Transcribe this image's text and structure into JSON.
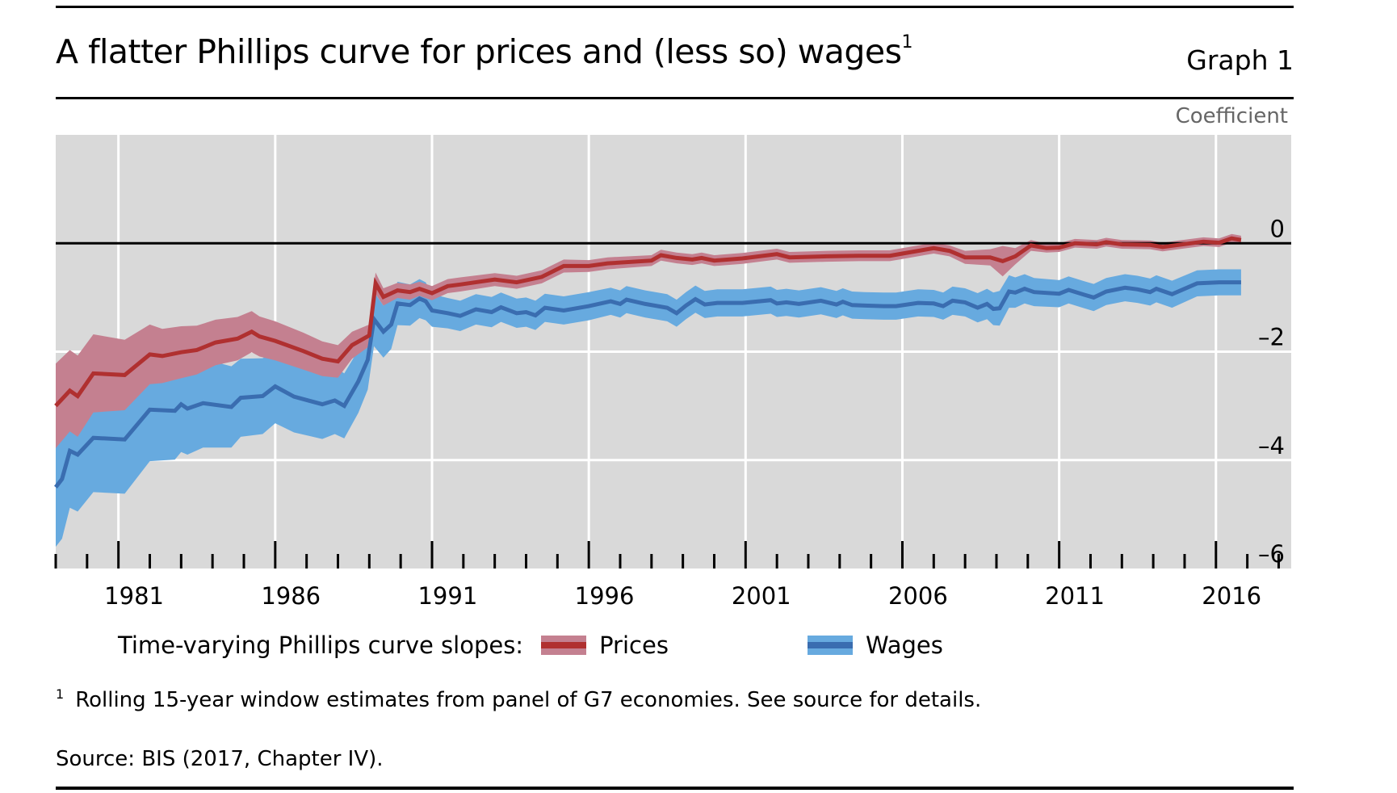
{
  "header": {
    "title": "A flatter Phillips curve for prices and (less so) wages",
    "title_footnote_marker": "1",
    "graph_label": "Graph 1"
  },
  "footer": {
    "footnote_marker": "1",
    "footnote": "Rolling 15-year window estimates from panel of G7 economies. See source for details.",
    "source": "Source: BIS (2017, Chapter IV)."
  },
  "colors": {
    "plot_background": "#d9d9d9",
    "gridline": "#ffffff",
    "prices_line": "#b03030",
    "prices_band": "#c48090",
    "wages_line": "#3a6db0",
    "wages_band": "#67aadf"
  },
  "chart_data": {
    "type": "line",
    "title": "A flatter Phillips curve for prices and (less so) wages",
    "xlabel": "",
    "ylabel": "Coefficient",
    "xlim": [
      1979,
      2018.4
    ],
    "ylim": [
      -6,
      2
    ],
    "x_tick_labels": [
      "1981",
      "1986",
      "1991",
      "1996",
      "2001",
      "2006",
      "2011",
      "2016"
    ],
    "x_major_ticks": [
      1981,
      1986,
      1991,
      1996,
      2001,
      2006,
      2011,
      2016
    ],
    "y_ticks": [
      0,
      -2,
      -4,
      -6
    ],
    "y_tick_labels": [
      "0",
      "–2",
      "–4",
      "–6"
    ],
    "y_axis_position": "right",
    "grid": true,
    "zero_line": true,
    "legend_title": "Time-varying Phillips curve slopes:",
    "legend_placement": "bottom",
    "series": [
      {
        "name": "Prices",
        "x": [
          1979.0,
          1979.45,
          1979.7,
          1980.2,
          1981.2,
          1982.0,
          1982.4,
          1983.0,
          1983.5,
          1984.1,
          1984.8,
          1985.25,
          1985.5,
          1986.0,
          1986.9,
          1987.5,
          1988.0,
          1988.45,
          1989.0,
          1989.2,
          1989.45,
          1989.9,
          1990.3,
          1990.6,
          1991.0,
          1991.5,
          1991.9,
          1993.0,
          1993.7,
          1994.5,
          1995.2,
          1996.0,
          1996.6,
          1998.0,
          1998.3,
          1998.8,
          1999.3,
          1999.6,
          2000.0,
          2000.9,
          2002.0,
          2002.4,
          2003.6,
          2004.6,
          2005.6,
          2006.0,
          2007.0,
          2007.5,
          2008.0,
          2008.8,
          2009.2,
          2009.6,
          2010.1,
          2010.6,
          2011.0,
          2011.5,
          2012.2,
          2012.5,
          2013.0,
          2013.9,
          2014.3,
          2014.8,
          2015.6,
          2016.1,
          2016.5,
          2016.8
        ],
        "values": [
          -3.0,
          -2.72,
          -2.82,
          -2.4,
          -2.43,
          -2.05,
          -2.08,
          -2.01,
          -1.97,
          -1.83,
          -1.76,
          -1.63,
          -1.72,
          -1.8,
          -1.99,
          -2.13,
          -2.18,
          -1.88,
          -1.7,
          -0.74,
          -0.99,
          -0.87,
          -0.9,
          -0.84,
          -0.92,
          -0.79,
          -0.76,
          -0.67,
          -0.72,
          -0.62,
          -0.42,
          -0.42,
          -0.37,
          -0.32,
          -0.22,
          -0.27,
          -0.3,
          -0.27,
          -0.32,
          -0.28,
          -0.2,
          -0.26,
          -0.24,
          -0.23,
          -0.23,
          -0.19,
          -0.09,
          -0.14,
          -0.26,
          -0.26,
          -0.33,
          -0.24,
          -0.04,
          -0.09,
          -0.08,
          0.0,
          -0.02,
          0.02,
          -0.02,
          -0.03,
          -0.07,
          -0.03,
          0.03,
          0.01,
          0.09,
          0.06
        ],
        "band_half_width": [
          0.78,
          0.75,
          0.75,
          0.72,
          0.65,
          0.55,
          0.5,
          0.48,
          0.45,
          0.42,
          0.4,
          0.38,
          0.37,
          0.36,
          0.34,
          0.32,
          0.3,
          0.25,
          0.2,
          0.2,
          0.16,
          0.14,
          0.14,
          0.13,
          0.13,
          0.13,
          0.13,
          0.12,
          0.12,
          0.12,
          0.12,
          0.11,
          0.11,
          0.1,
          0.1,
          0.1,
          0.1,
          0.1,
          0.1,
          0.1,
          0.1,
          0.1,
          0.1,
          0.1,
          0.1,
          0.1,
          0.1,
          0.1,
          0.12,
          0.15,
          0.28,
          0.15,
          0.1,
          0.08,
          0.08,
          0.08,
          0.08,
          0.08,
          0.08,
          0.08,
          0.08,
          0.08,
          0.08,
          0.08,
          0.08,
          0.08
        ]
      },
      {
        "name": "Wages",
        "x": [
          1979.0,
          1979.2,
          1979.45,
          1979.7,
          1980.2,
          1981.2,
          1982.0,
          1982.8,
          1983.0,
          1983.2,
          1983.7,
          1984.6,
          1984.9,
          1985.6,
          1986.0,
          1986.6,
          1987.5,
          1987.9,
          1988.2,
          1988.65,
          1988.95,
          1989.15,
          1989.45,
          1989.7,
          1989.9,
          1990.3,
          1990.6,
          1990.8,
          1991.0,
          1991.5,
          1991.9,
          1992.4,
          1992.9,
          1993.2,
          1993.7,
          1994.0,
          1994.3,
          1994.6,
          1995.2,
          1996.0,
          1996.7,
          1997.0,
          1997.2,
          1997.8,
          1998.5,
          1998.8,
          1999.1,
          1999.4,
          1999.7,
          2000.1,
          2000.9,
          2001.8,
          2002.0,
          2002.3,
          2002.7,
          2003.4,
          2003.9,
          2004.1,
          2004.4,
          2004.8,
          2005.4,
          2005.8,
          2006.5,
          2007.0,
          2007.3,
          2007.6,
          2008.0,
          2008.4,
          2008.7,
          2008.9,
          2009.1,
          2009.4,
          2009.6,
          2009.9,
          2010.2,
          2011.0,
          2011.3,
          2011.8,
          2012.1,
          2012.5,
          2013.1,
          2013.5,
          2013.9,
          2014.1,
          2014.6,
          2015.4,
          2016.1,
          2016.8
        ],
        "values": [
          -4.5,
          -4.35,
          -3.83,
          -3.9,
          -3.59,
          -3.62,
          -3.07,
          -3.09,
          -2.97,
          -3.05,
          -2.95,
          -3.02,
          -2.85,
          -2.82,
          -2.64,
          -2.83,
          -2.97,
          -2.9,
          -3.0,
          -2.55,
          -2.15,
          -1.4,
          -1.63,
          -1.5,
          -1.11,
          -1.14,
          -1.02,
          -1.07,
          -1.24,
          -1.29,
          -1.34,
          -1.22,
          -1.27,
          -1.18,
          -1.29,
          -1.27,
          -1.33,
          -1.19,
          -1.24,
          -1.16,
          -1.07,
          -1.12,
          -1.04,
          -1.12,
          -1.19,
          -1.29,
          -1.15,
          -1.03,
          -1.13,
          -1.1,
          -1.1,
          -1.05,
          -1.11,
          -1.09,
          -1.12,
          -1.06,
          -1.13,
          -1.08,
          -1.14,
          -1.15,
          -1.16,
          -1.16,
          -1.1,
          -1.11,
          -1.16,
          -1.06,
          -1.09,
          -1.19,
          -1.12,
          -1.21,
          -1.2,
          -0.89,
          -0.91,
          -0.84,
          -0.9,
          -0.93,
          -0.86,
          -0.95,
          -1.0,
          -0.89,
          -0.82,
          -0.85,
          -0.9,
          -0.84,
          -0.94,
          -0.74,
          -0.72,
          -0.72
        ],
        "band_half_width": [
          1.1,
          1.1,
          1.05,
          1.05,
          1.0,
          1.0,
          0.95,
          0.9,
          0.88,
          0.85,
          0.82,
          0.75,
          0.72,
          0.7,
          0.68,
          0.66,
          0.64,
          0.62,
          0.6,
          0.58,
          0.55,
          0.5,
          0.48,
          0.45,
          0.4,
          0.38,
          0.36,
          0.35,
          0.3,
          0.28,
          0.28,
          0.28,
          0.28,
          0.27,
          0.27,
          0.27,
          0.27,
          0.26,
          0.26,
          0.26,
          0.25,
          0.25,
          0.25,
          0.25,
          0.25,
          0.25,
          0.25,
          0.25,
          0.25,
          0.25,
          0.25,
          0.25,
          0.25,
          0.25,
          0.25,
          0.25,
          0.25,
          0.25,
          0.25,
          0.25,
          0.25,
          0.25,
          0.25,
          0.25,
          0.25,
          0.26,
          0.26,
          0.27,
          0.28,
          0.3,
          0.32,
          0.3,
          0.28,
          0.27,
          0.26,
          0.25,
          0.25,
          0.25,
          0.25,
          0.25,
          0.25,
          0.25,
          0.25,
          0.25,
          0.25,
          0.24,
          0.24,
          0.24
        ]
      }
    ]
  }
}
